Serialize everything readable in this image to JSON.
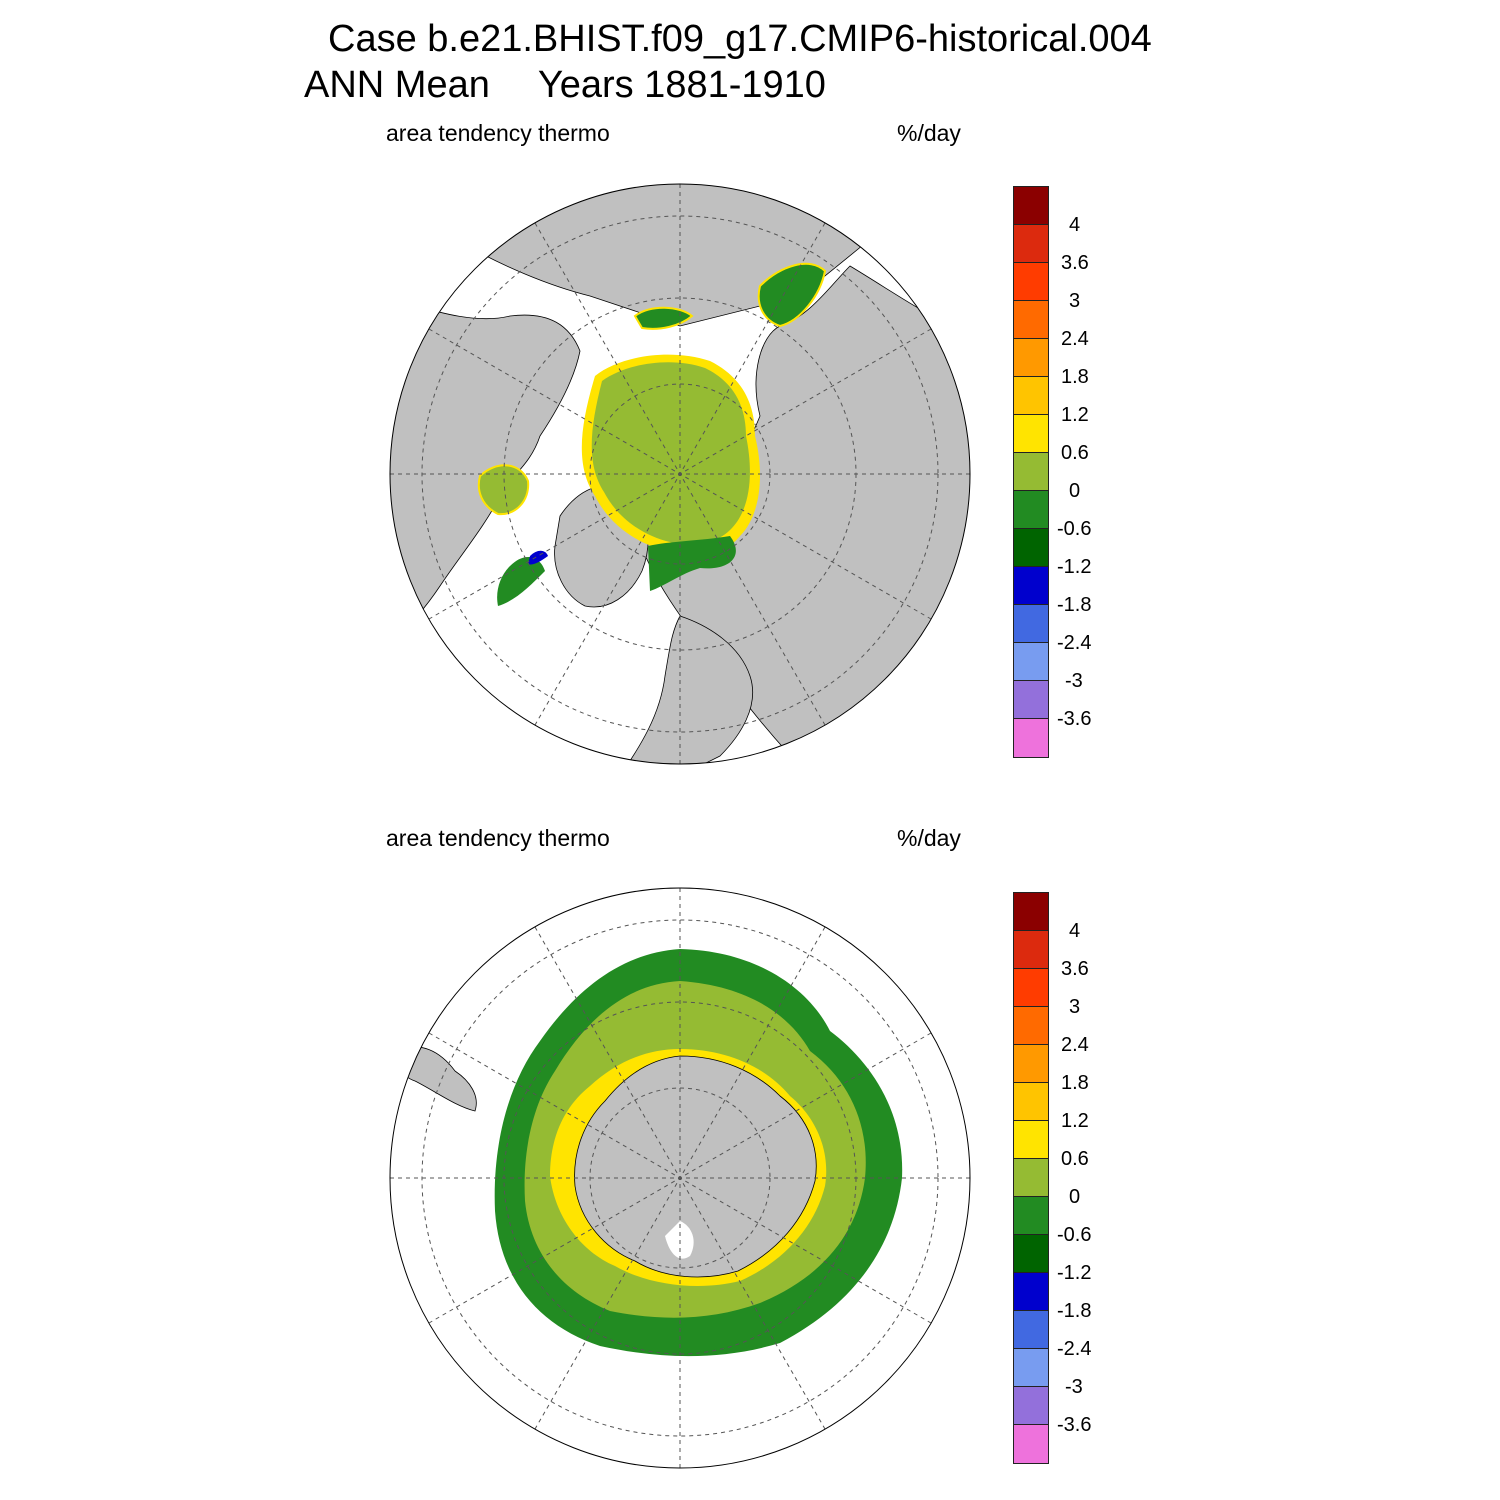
{
  "title": {
    "case": "Case b.e21.BHIST.f09_g17.CMIP6-historical.004",
    "period": "ANN Mean",
    "years": "Years 1881-1910"
  },
  "panels": [
    {
      "id": "north",
      "hemisphere": "Northern",
      "variable": "area tendency thermo",
      "units": "%/day"
    },
    {
      "id": "south",
      "hemisphere": "Southern",
      "variable": "area tendency thermo",
      "units": "%/day"
    }
  ],
  "colorbar": {
    "colors": [
      "#8b0000",
      "#dc2a0e",
      "#ff3c00",
      "#ff6a00",
      "#ff9900",
      "#ffc400",
      "#ffe400",
      "#95bb33",
      "#228b22",
      "#006400",
      "#0000cd",
      "#4169e1",
      "#789cf0",
      "#9370db",
      "#ee72dc"
    ],
    "labels": [
      "4",
      "3.6",
      "3",
      "2.4",
      "1.8",
      "1.2",
      "0.6",
      "0",
      "-0.6",
      "-1.2",
      "-1.8",
      "-2.4",
      "-3",
      "-3.6"
    ]
  },
  "style": {
    "land": "#c0c0c0",
    "ice_interior": "#95bb33",
    "ice_edge": "#228b22",
    "ice_margin": "#ffe400",
    "ocean": "#ffffff"
  }
}
